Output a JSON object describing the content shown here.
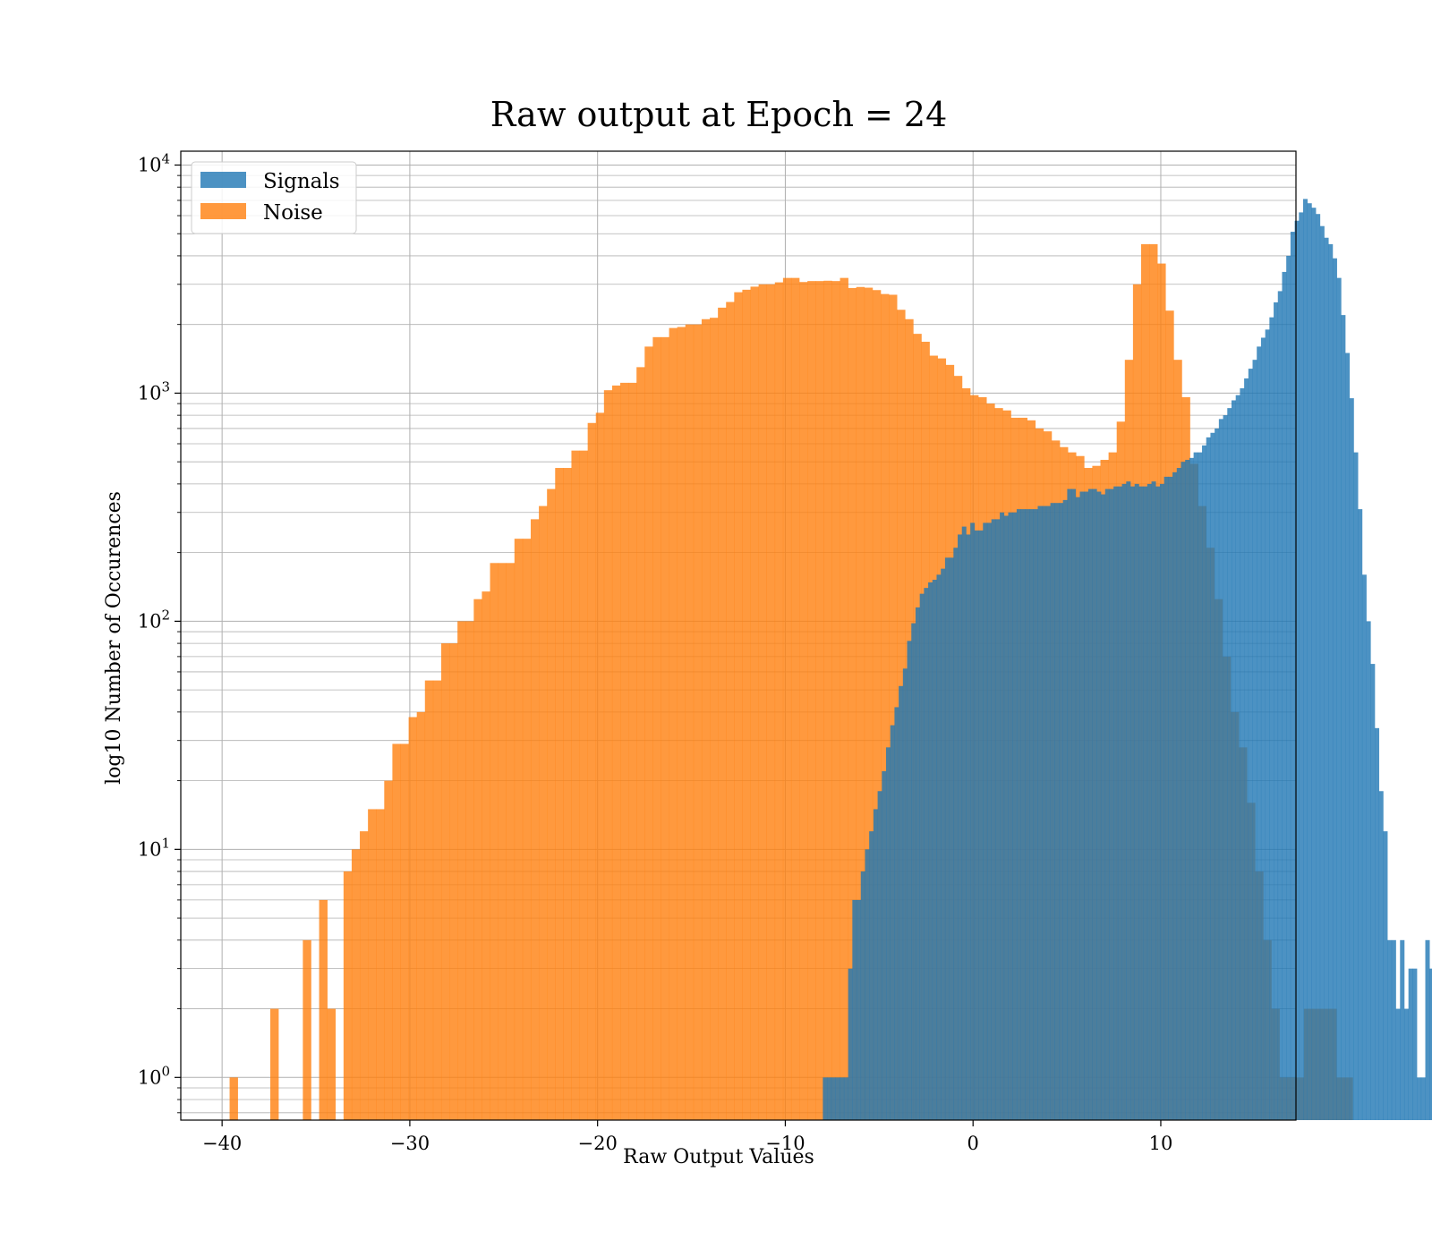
{
  "chart_data": {
    "type": "histogram",
    "title": "Raw output at Epoch = 24",
    "xlabel": "Raw Output Values",
    "ylabel": "log10 Number of Occurences",
    "x_range": [
      -42.2,
      17.2
    ],
    "y_range": [
      0.65,
      11500
    ],
    "y_scale": "log",
    "grid": true,
    "x_ticks": [
      -40,
      -30,
      -20,
      -10,
      0,
      10
    ],
    "x_tick_labels": [
      "−40",
      "−30",
      "−20",
      "−10",
      "0",
      "10"
    ],
    "y_ticks": [
      1,
      10,
      100,
      1000,
      10000
    ],
    "y_tick_labels": [
      {
        "base": "10",
        "exp": "0"
      },
      {
        "base": "10",
        "exp": "1"
      },
      {
        "base": "10",
        "exp": "2"
      },
      {
        "base": "10",
        "exp": "3"
      },
      {
        "base": "10",
        "exp": "4"
      }
    ],
    "legend": {
      "placement": "upper-left",
      "entries": [
        {
          "label": "Signals",
          "color": "#1f77b4"
        },
        {
          "label": "Noise",
          "color": "#ff7f0e"
        }
      ]
    },
    "series": [
      {
        "name": "Noise",
        "color": "#ff7f0e",
        "opacity": 0.8,
        "bin_start": -39.6,
        "bin_width": 0.4335,
        "counts": [
          1,
          0,
          0,
          0,
          0,
          2,
          0,
          0,
          0,
          4,
          0,
          6,
          2,
          0,
          8,
          10,
          12,
          15,
          15,
          20,
          29,
          29,
          38,
          40,
          55,
          55,
          80,
          80,
          100,
          100,
          125,
          135,
          180,
          180,
          180,
          230,
          230,
          280,
          320,
          380,
          470,
          470,
          560,
          560,
          740,
          820,
          1030,
          1080,
          1110,
          1110,
          1300,
          1600,
          1760,
          1760,
          1930,
          1950,
          2000,
          2000,
          2110,
          2140,
          2370,
          2510,
          2770,
          2840,
          2930,
          3000,
          3000,
          3060,
          3200,
          3200,
          3070,
          3100,
          3100,
          3110,
          3100,
          3200,
          2890,
          2920,
          2900,
          2830,
          2720,
          2700,
          2320,
          2110,
          1820,
          1680,
          1460,
          1420,
          1330,
          1190,
          1050,
          980,
          960,
          900,
          860,
          840,
          780,
          780,
          760,
          700,
          680,
          620,
          580,
          550,
          530,
          470,
          480,
          510,
          550,
          750,
          1400,
          3000,
          4500,
          4500,
          3700,
          2300,
          1400,
          960,
          490,
          320,
          210,
          125,
          70,
          40,
          28,
          16,
          8,
          4,
          2,
          1,
          1,
          1,
          2,
          2,
          2,
          2,
          1,
          1,
          0,
          0
        ]
      },
      {
        "name": "Signals",
        "color": "#1f77b4",
        "opacity": 0.8,
        "bin_start": -8.0,
        "bin_width": 0.2244,
        "counts": [
          1,
          1,
          1,
          1,
          1,
          1,
          3,
          6,
          6,
          8,
          10,
          12,
          15,
          18,
          22,
          28,
          35,
          42,
          52,
          62,
          82,
          98,
          115,
          132,
          140,
          148,
          152,
          160,
          170,
          190,
          190,
          210,
          240,
          260,
          240,
          270,
          250,
          250,
          270,
          270,
          280,
          280,
          300,
          290,
          300,
          300,
          310,
          310,
          310,
          310,
          310,
          320,
          320,
          320,
          330,
          330,
          330,
          340,
          380,
          380,
          350,
          370,
          370,
          380,
          380,
          370,
          360,
          380,
          380,
          390,
          390,
          400,
          410,
          390,
          400,
          390,
          390,
          400,
          410,
          390,
          400,
          430,
          430,
          450,
          470,
          500,
          510,
          520,
          550,
          550,
          590,
          640,
          670,
          700,
          770,
          800,
          860,
          930,
          980,
          1050,
          1160,
          1280,
          1400,
          1600,
          1750,
          1900,
          2150,
          2500,
          2800,
          3400,
          4000,
          5100,
          5700,
          6200,
          7100,
          6800,
          6500,
          6100,
          5400,
          4800,
          4500,
          3900,
          3200,
          2200,
          1500,
          950,
          550,
          310,
          160,
          100,
          65,
          34,
          18,
          12,
          4,
          4,
          2,
          4,
          2,
          3,
          3,
          1,
          1,
          4,
          3,
          4
        ]
      }
    ]
  }
}
